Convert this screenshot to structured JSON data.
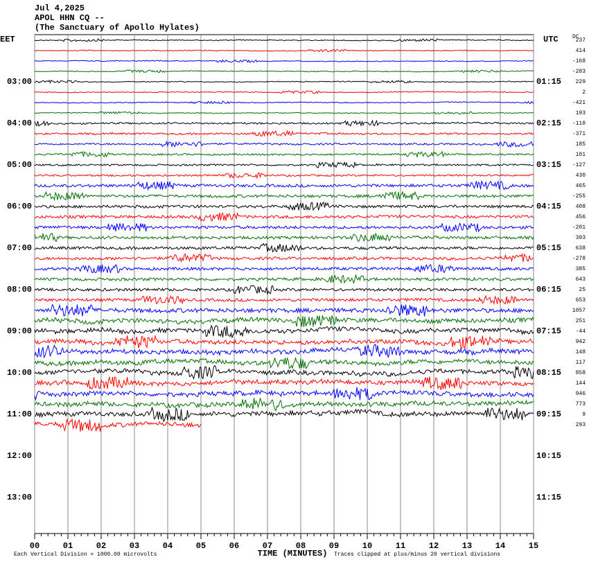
{
  "chart_data": {
    "type": "helicorder",
    "title_lines": [
      "Jul 4,2025",
      "APOL HHN CQ --",
      "(The Sanctuary of Apollo Hylates)"
    ],
    "left_header": "EET",
    "left_labels": [
      "03:00",
      "04:00",
      "05:00",
      "06:00",
      "07:00",
      "08:00",
      "09:00",
      "10:00",
      "11:00",
      "12:00",
      "13:00"
    ],
    "right_header": "UTC",
    "right_labels": [
      "01:15",
      "02:15",
      "03:15",
      "04:15",
      "05:15",
      "06:15",
      "07:15",
      "08:15",
      "09:15",
      "10:15",
      "11:15"
    ],
    "dc_header": "DC",
    "dc_offsets": [
      237,
      414,
      -168,
      -283,
      229,
      2,
      -421,
      193,
      -110,
      -371,
      185,
      101,
      -127,
      430,
      465,
      -255,
      408,
      456,
      -201,
      393,
      638,
      -278,
      385,
      643,
      25,
      653,
      1057,
      251,
      -44,
      942,
      148,
      117,
      858,
      144,
      946,
      773,
      9,
      293
    ],
    "trace_colors": [
      "#000000",
      "#ff0000",
      "#0000ff",
      "#007000"
    ],
    "xlim": [
      0,
      15
    ],
    "xticks": [
      {
        "value": 0,
        "label": "00"
      },
      {
        "value": 1,
        "label": "01"
      },
      {
        "value": 2,
        "label": "02"
      },
      {
        "value": 3,
        "label": "03"
      },
      {
        "value": 4,
        "label": "04"
      },
      {
        "value": 5,
        "label": "05"
      },
      {
        "value": 6,
        "label": "06"
      },
      {
        "value": 7,
        "label": "07"
      },
      {
        "value": 8,
        "label": "08"
      },
      {
        "value": 9,
        "label": "09"
      },
      {
        "value": 10,
        "label": "10"
      },
      {
        "value": 11,
        "label": "11"
      },
      {
        "value": 12,
        "label": "12"
      },
      {
        "value": 13,
        "label": "13"
      },
      {
        "value": 14,
        "label": "14"
      },
      {
        "value": 15,
        "label": "15"
      }
    ],
    "last_trace_end": 5,
    "x_label": "TIME (MINUTES)",
    "footnote_left": "Each Vertical Division = 1000.00 microvolts",
    "footnote_right": "Traces clipped at plus/minus 20 vertical divisions"
  }
}
